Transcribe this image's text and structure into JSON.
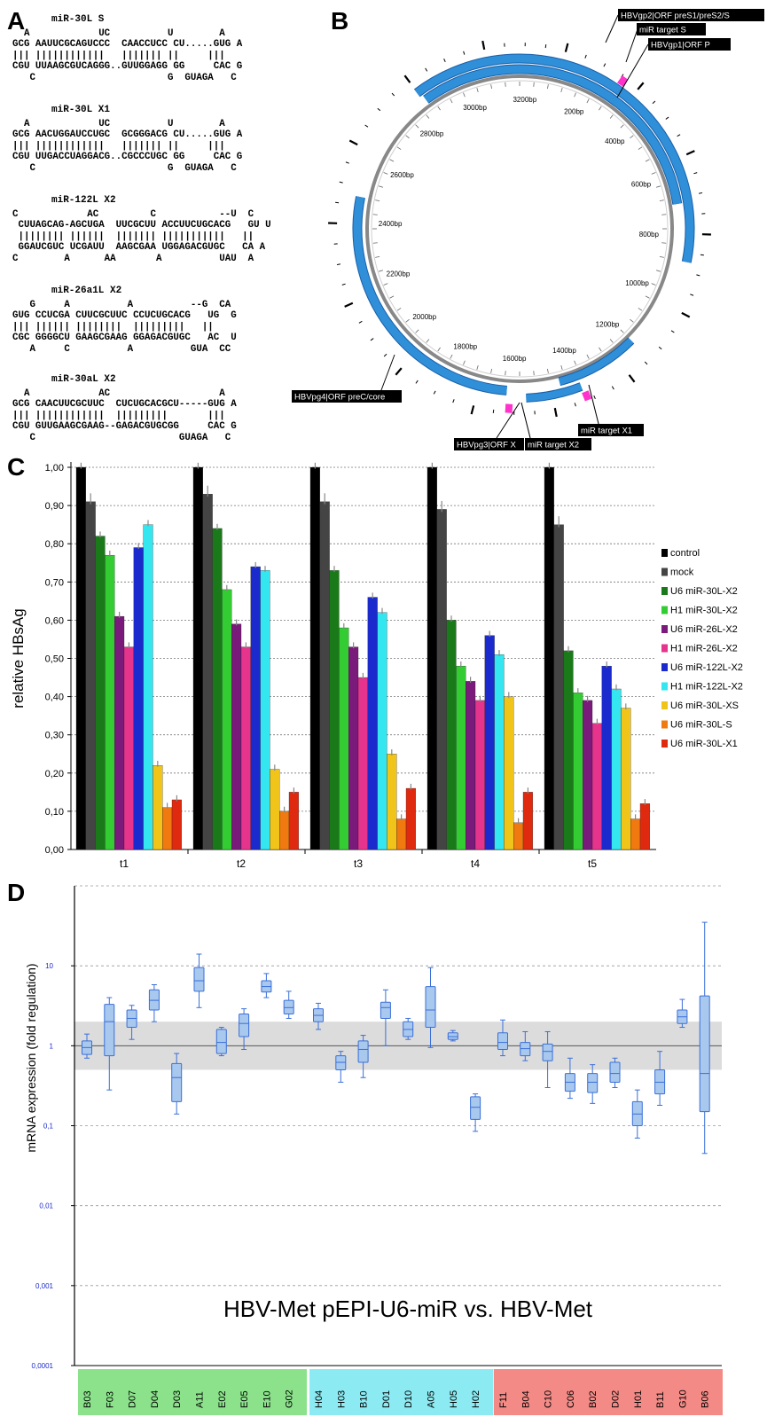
{
  "panels": {
    "a": "A",
    "b": "B",
    "c": "C",
    "d": "D"
  },
  "hairpins": [
    {
      "title": "miR-30L S",
      "lines": [
        "  A            UC          U        A",
        "GCG AAUUCGCAGUCCC  CAACCUCC CU.....GUG A",
        "||| ||||||||||||   ||||||| ||     |||",
        "CGU UUAAGCGUCAGGG..GUUGGAGG GG     CAC G",
        "   C                       G  GUAGA   C"
      ]
    },
    {
      "title": "miR-30L X1",
      "lines": [
        "  A            UC          U        A",
        "GCG AACUGGAUCCUGC  GCGGGACG CU.....GUG A",
        "||| ||||||||||||   ||||||| ||     |||",
        "CGU UUGACCUAGGACG..CGCCCUGC GG     CAC G",
        "   C                       G  GUAGA   C"
      ]
    },
    {
      "title": "miR-122L X2",
      "lines": [
        "C            AC         C           --U  C",
        " CUUAGCAG-AGCUGA  UUCGCUU ACCUUCUGCACG   GU U",
        " |||||||| ||||||  ||||||| |||||||||||   ||",
        " GGAUCGUC UCGAUU  AAGCGAA UGGAGACGUGC   CA A",
        "C        A      AA       A          UAU  A"
      ]
    },
    {
      "title": "miR-26a1L X2",
      "lines": [
        "   G     A          A          --G  CA",
        "GUG CCUCGA CUUCGCUUC CCUCUGCACG   UG  G",
        "||| |||||| ||||||||  |||||||||   ||",
        "CGC GGGGCU GAAGCGAAG GGAGACGUGC   AC  U",
        "   A     C          A          GUA  CC"
      ]
    },
    {
      "title": "miR-30aL X2",
      "lines": [
        "  A            AC                   A",
        "GCG CAACUUCGCUUC  CUCUGCACGCU-----GUG A",
        "||| ||||||||||||  |||||||||       |||",
        "CGU GUUGAAGCGAAG--GAGACGUGCGG     CAC G",
        "   C                         GUAGA   C"
      ]
    }
  ],
  "plasmid": {
    "bp_labels": [
      "3200bp",
      "200bp",
      "400bp",
      "600bp",
      "800bp",
      "1000bp",
      "1200bp",
      "1400bp",
      "1600bp",
      "1800bp",
      "2000bp",
      "2200bp",
      "2400bp",
      "2600bp",
      "2800bp",
      "3000bp"
    ],
    "features": [
      "HBVgp2|ORF preS1/preS2/S",
      "miR target S",
      "HBVgp1|ORF P",
      "HBVpg4|ORF preC/core",
      "HBVpg3|ORF X",
      "miR target X2",
      "miR target X1"
    ],
    "colors": {
      "orf": "#2f8fd9",
      "target": "#ff33cc",
      "ring": "#888888"
    }
  },
  "chart_data": {
    "type": "bar",
    "ylabel": "relative HBsAg",
    "ylim": [
      0,
      1
    ],
    "yticks": [
      "0,00",
      "0,10",
      "0,20",
      "0,30",
      "0,40",
      "0,50",
      "0,60",
      "0,70",
      "0,80",
      "0,90",
      "1,00"
    ],
    "categories": [
      "t1",
      "t2",
      "t3",
      "t4",
      "t5"
    ],
    "grid": true,
    "legend": "right",
    "series": [
      {
        "name": "control",
        "color": "#000000",
        "values": [
          1.0,
          1.0,
          1.0,
          1.0,
          1.0
        ]
      },
      {
        "name": "mock",
        "color": "#444444",
        "values": [
          0.91,
          0.93,
          0.91,
          0.89,
          0.85
        ]
      },
      {
        "name": "U6 miR-30L-X2",
        "color": "#1a7a1a",
        "values": [
          0.82,
          0.84,
          0.73,
          0.6,
          0.52
        ]
      },
      {
        "name": "H1 miR-30L-X2",
        "color": "#33cc33",
        "values": [
          0.77,
          0.68,
          0.58,
          0.48,
          0.41
        ]
      },
      {
        "name": "U6 miR-26L-X2",
        "color": "#7a1a7a",
        "values": [
          0.61,
          0.59,
          0.53,
          0.44,
          0.39
        ]
      },
      {
        "name": "H1 miR-26L-X2",
        "color": "#e6338c",
        "values": [
          0.53,
          0.53,
          0.45,
          0.39,
          0.33
        ]
      },
      {
        "name": "U6 miR-122L-X2",
        "color": "#1a2acc",
        "values": [
          0.79,
          0.74,
          0.66,
          0.56,
          0.48
        ]
      },
      {
        "name": "H1 miR-122L-X2",
        "color": "#33e6f0",
        "values": [
          0.85,
          0.73,
          0.62,
          0.51,
          0.42
        ]
      },
      {
        "name": "U6 miR-30L-XS",
        "color": "#f0c419",
        "values": [
          0.22,
          0.21,
          0.25,
          0.4,
          0.37
        ]
      },
      {
        "name": "U6 miR-30L-S",
        "color": "#f07a10",
        "values": [
          0.11,
          0.1,
          0.08,
          0.07,
          0.08
        ]
      },
      {
        "name": "U6 miR-30L-X1",
        "color": "#e02a10",
        "values": [
          0.13,
          0.15,
          0.16,
          0.15,
          0.12
        ]
      }
    ]
  },
  "box_data": {
    "type": "box",
    "ylabel": "mRNA expression (fold regulation)",
    "yscale": "log",
    "ylim": [
      0.0001,
      100
    ],
    "yticks": [
      "10",
      "1",
      "0,1",
      "0,01",
      "0,001",
      "0,0001"
    ],
    "band": [
      0.5,
      2
    ],
    "title": "HBV-Met pEPI-U6-miR vs. HBV-Met",
    "box_color": "#a9c8ee",
    "box_stroke": "#3a6fd8",
    "groups": [
      {
        "color": "#8be28b",
        "items": [
          {
            "label": "B03",
            "min": 0.7,
            "q1": 0.78,
            "med": 0.95,
            "q3": 1.15,
            "max": 1.4
          },
          {
            "label": "F03",
            "min": 0.28,
            "q1": 0.75,
            "med": 2.0,
            "q3": 3.3,
            "max": 4.0
          },
          {
            "label": "D07",
            "min": 1.2,
            "q1": 1.7,
            "med": 2.2,
            "q3": 2.8,
            "max": 3.2
          },
          {
            "label": "D04",
            "min": 2.0,
            "q1": 2.8,
            "med": 3.7,
            "q3": 5.0,
            "max": 5.8
          },
          {
            "label": "D03",
            "min": 0.14,
            "q1": 0.2,
            "med": 0.4,
            "q3": 0.6,
            "max": 0.8
          },
          {
            "label": "A11",
            "min": 3.0,
            "q1": 4.8,
            "med": 6.5,
            "q3": 9.5,
            "max": 14.0
          },
          {
            "label": "E02",
            "min": 0.75,
            "q1": 0.8,
            "med": 1.1,
            "q3": 1.6,
            "max": 1.7
          },
          {
            "label": "E05",
            "min": 0.9,
            "q1": 1.3,
            "med": 1.9,
            "q3": 2.5,
            "max": 2.9
          },
          {
            "label": "E10",
            "min": 4.0,
            "q1": 4.7,
            "med": 5.5,
            "q3": 6.5,
            "max": 8.0
          },
          {
            "label": "G02",
            "min": 2.2,
            "q1": 2.5,
            "med": 3.0,
            "q3": 3.7,
            "max": 4.8
          }
        ]
      },
      {
        "color": "#8ceaf2",
        "items": [
          {
            "label": "H04",
            "min": 1.6,
            "q1": 2.0,
            "med": 2.4,
            "q3": 2.9,
            "max": 3.4
          },
          {
            "label": "H03",
            "min": 0.35,
            "q1": 0.5,
            "med": 0.62,
            "q3": 0.75,
            "max": 0.85
          },
          {
            "label": "B10",
            "min": 0.4,
            "q1": 0.62,
            "med": 0.9,
            "q3": 1.15,
            "max": 1.35
          },
          {
            "label": "D01",
            "min": 1.0,
            "q1": 2.2,
            "med": 3.0,
            "q3": 3.5,
            "max": 5.0
          },
          {
            "label": "D10",
            "min": 1.2,
            "q1": 1.3,
            "med": 1.6,
            "q3": 2.0,
            "max": 2.2
          },
          {
            "label": "A05",
            "min": 0.95,
            "q1": 1.7,
            "med": 2.8,
            "q3": 5.5,
            "max": 9.5
          },
          {
            "label": "H05",
            "min": 1.15,
            "q1": 1.2,
            "med": 1.3,
            "q3": 1.45,
            "max": 1.55
          },
          {
            "label": "H02",
            "min": 0.085,
            "q1": 0.12,
            "med": 0.17,
            "q3": 0.23,
            "max": 0.25
          }
        ]
      },
      {
        "color": "#f48a86",
        "items": [
          {
            "label": "F11",
            "min": 0.75,
            "q1": 0.9,
            "med": 1.1,
            "q3": 1.45,
            "max": 2.1
          },
          {
            "label": "B04",
            "min": 0.65,
            "q1": 0.75,
            "med": 0.92,
            "q3": 1.1,
            "max": 1.5
          },
          {
            "label": "C10",
            "min": 0.3,
            "q1": 0.65,
            "med": 0.85,
            "q3": 1.05,
            "max": 1.5
          },
          {
            "label": "C06",
            "min": 0.22,
            "q1": 0.27,
            "med": 0.35,
            "q3": 0.45,
            "max": 0.7
          },
          {
            "label": "B02",
            "min": 0.19,
            "q1": 0.26,
            "med": 0.35,
            "q3": 0.45,
            "max": 0.58
          },
          {
            "label": "D02",
            "min": 0.3,
            "q1": 0.35,
            "med": 0.45,
            "q3": 0.62,
            "max": 0.7
          },
          {
            "label": "H01",
            "min": 0.07,
            "q1": 0.1,
            "med": 0.14,
            "q3": 0.2,
            "max": 0.28
          },
          {
            "label": "B11",
            "min": 0.18,
            "q1": 0.25,
            "med": 0.35,
            "q3": 0.5,
            "max": 0.85
          },
          {
            "label": "G10",
            "min": 1.7,
            "q1": 1.9,
            "med": 2.3,
            "q3": 2.8,
            "max": 3.8
          },
          {
            "label": "B06",
            "min": 0.045,
            "q1": 0.15,
            "med": 0.45,
            "q3": 4.2,
            "max": 35.0
          }
        ]
      }
    ]
  }
}
